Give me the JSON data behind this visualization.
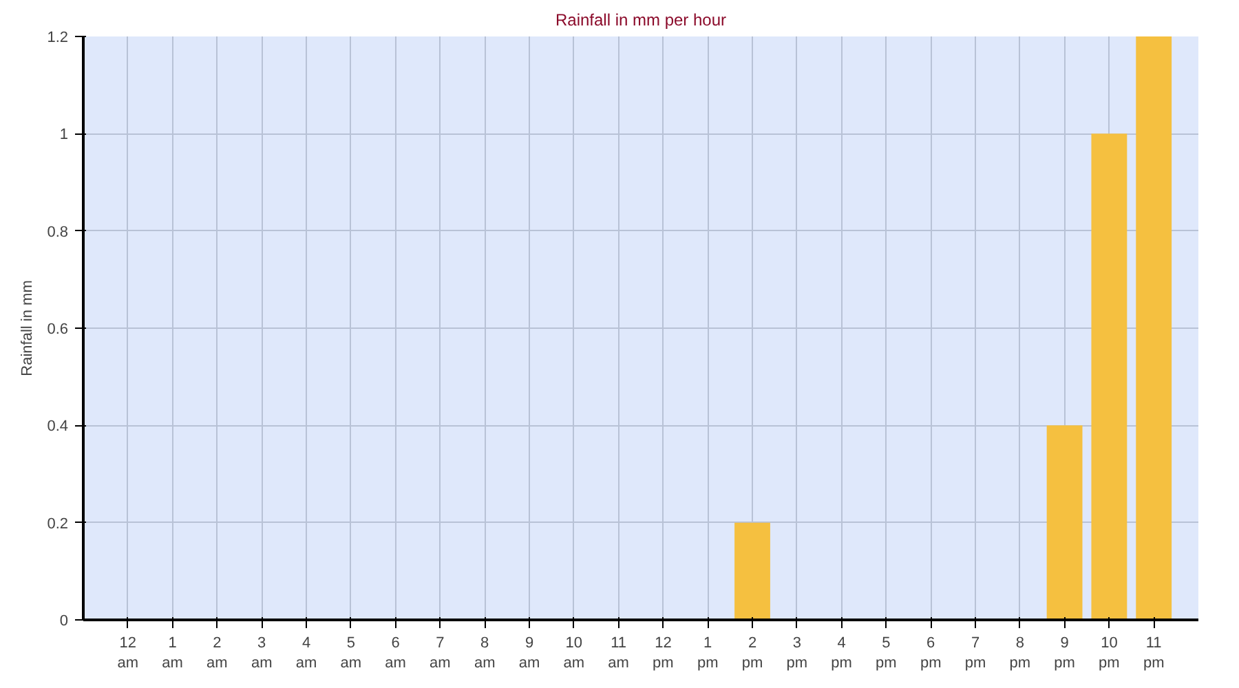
{
  "chart_data": {
    "type": "bar",
    "title": "Rainfall in mm per hour",
    "ylabel": "Rainfall in mm",
    "categories": [
      "12 am",
      "1 am",
      "2 am",
      "3 am",
      "4 am",
      "5 am",
      "6 am",
      "7 am",
      "8 am",
      "9 am",
      "10 am",
      "11 am",
      "12 pm",
      "1 pm",
      "2 pm",
      "3 pm",
      "4 pm",
      "5 pm",
      "6 pm",
      "7 pm",
      "8 pm",
      "9 pm",
      "10 pm",
      "11 pm"
    ],
    "values": [
      0,
      0,
      0,
      0,
      0,
      0,
      0,
      0,
      0,
      0,
      0,
      0,
      0,
      0,
      0.2,
      0,
      0,
      0,
      0,
      0,
      0,
      0.4,
      1.0,
      1.2
    ],
    "color": "#f5c040",
    "ylim": [
      0,
      1.2
    ],
    "yticks": [
      0,
      0.2,
      0.4,
      0.6,
      0.8,
      1,
      1.2
    ],
    "grid": true
  }
}
